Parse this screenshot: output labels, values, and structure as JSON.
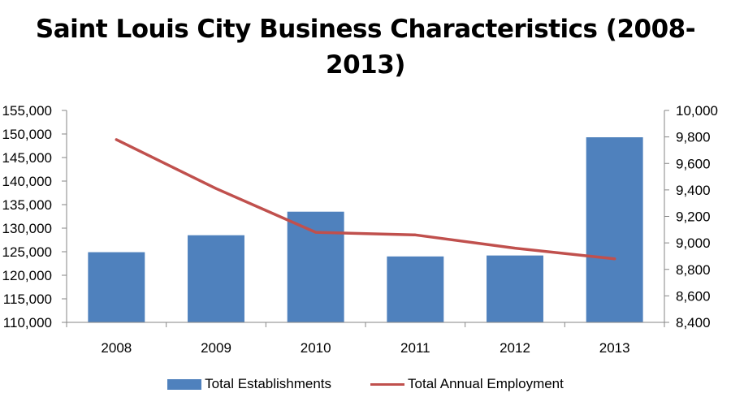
{
  "chart_data": {
    "type": "bar",
    "title_lines": [
      "Saint Louis City Business Characteristics (2008-",
      "2013)"
    ],
    "categories": [
      "2008",
      "2009",
      "2010",
      "2011",
      "2012",
      "2013"
    ],
    "series": [
      {
        "name": "Total Establishments",
        "type": "bar",
        "axis": "left",
        "values": [
          124900,
          128500,
          133500,
          124000,
          124200,
          149300
        ],
        "color": "#4F81BD"
      },
      {
        "name": "Total Annual Employment",
        "type": "line",
        "axis": "right",
        "values": [
          9780,
          9410,
          9080,
          9060,
          8960,
          8880
        ],
        "color": "#C0504D"
      }
    ],
    "y_left": {
      "min": 110000,
      "max": 155000,
      "ticks": [
        "110,000",
        "115,000",
        "120,000",
        "125,000",
        "130,000",
        "135,000",
        "140,000",
        "145,000",
        "150,000",
        "155,000"
      ]
    },
    "y_right": {
      "min": 8400,
      "max": 10000,
      "ticks": [
        "8,400",
        "8,600",
        "8,800",
        "9,000",
        "9,200",
        "9,400",
        "9,600",
        "9,800",
        "10,000"
      ]
    },
    "grid": false,
    "legend_position": "bottom"
  }
}
